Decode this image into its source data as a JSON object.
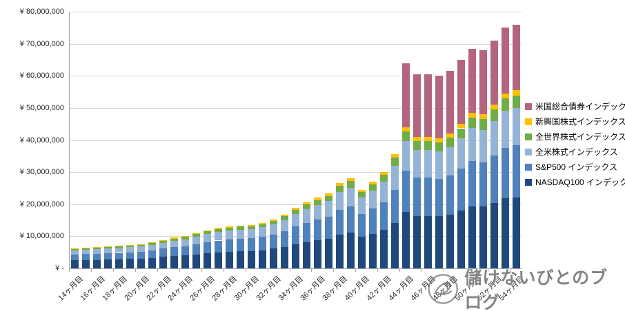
{
  "watermark": {
    "text": "儲けないびとのブログ"
  },
  "chart_data": {
    "type": "bar",
    "stacked": true,
    "title": "",
    "xlabel": "",
    "ylabel": "",
    "ylim": [
      0,
      80000000
    ],
    "grid": true,
    "legend_position": "right",
    "x_label_every": 2,
    "y_ticks": [
      {
        "value": 0,
        "label": "¥ -"
      },
      {
        "value": 10000000,
        "label": "¥ 10,000,000"
      },
      {
        "value": 20000000,
        "label": "¥ 20,000,000"
      },
      {
        "value": 30000000,
        "label": "¥ 30,000,000"
      },
      {
        "value": 40000000,
        "label": "¥ 40,000,000"
      },
      {
        "value": 50000000,
        "label": "¥ 50,000,000"
      },
      {
        "value": 60000000,
        "label": "¥ 60,000,000"
      },
      {
        "value": 70000000,
        "label": "¥ 70,000,000"
      },
      {
        "value": 80000000,
        "label": "¥ 80,000,000"
      }
    ],
    "categories": [
      "14ヶ月目",
      "15ヶ月目",
      "16ヶ月目",
      "17ヶ月目",
      "18ヶ月目",
      "19ヶ月目",
      "20ヶ月目",
      "21ヶ月目",
      "22ヶ月目",
      "23ヶ月目",
      "24ヶ月目",
      "25ヶ月目",
      "26ヶ月目",
      "27ヶ月目",
      "28ヶ月目",
      "29ヶ月目",
      "30ヶ月目",
      "31ヶ月目",
      "32ヶ月目",
      "33ヶ月目",
      "34ヶ月目",
      "35ヶ月目",
      "36ヶ月目",
      "37ヶ月目",
      "38ヶ月目",
      "39ヶ月目",
      "40ヶ月目",
      "41ヶ月目",
      "42ヶ月目",
      "43ヶ月目",
      "44ヶ月目",
      "45ヶ月目",
      "46ヶ月目",
      "47ヶ月目",
      "48ヶ月目",
      "49ヶ月目",
      "50ヶ月目",
      "51ヶ月目",
      "52ヶ月目",
      "53ヶ月目",
      "54ヶ月目"
    ],
    "series": [
      {
        "name": "NASDAQ100 インデックス",
        "color": "#1F497D",
        "values": [
          2520000,
          2600000,
          2640000,
          2760000,
          2800000,
          2920000,
          3040000,
          3280000,
          3560000,
          3840000,
          4040000,
          4400000,
          4760000,
          5040000,
          5240000,
          5360000,
          5440000,
          5680000,
          6120000,
          6720000,
          7560000,
          8200000,
          8800000,
          9320000,
          10600000,
          11200000,
          9800000,
          10800000,
          12000000,
          14200000,
          17600000,
          16400000,
          16400000,
          16200000,
          16800000,
          18000000,
          19400000,
          19200000,
          20400000,
          21800000,
          22200000
        ]
      },
      {
        "name": "S&P500 インデックス",
        "color": "#4F81BD",
        "values": [
          1830000,
          1890000,
          1910000,
          2000000,
          2030000,
          2120000,
          2200000,
          2380000,
          2580000,
          2780000,
          2930000,
          3190000,
          3450000,
          3650000,
          3800000,
          3890000,
          3940000,
          4120000,
          4440000,
          4870000,
          5480000,
          5950000,
          6380000,
          6760000,
          7690000,
          8120000,
          7110000,
          7830000,
          8700000,
          10300000,
          12760000,
          11890000,
          11890000,
          11750000,
          12180000,
          13050000,
          14070000,
          13920000,
          14790000,
          15810000,
          16100000
        ]
      },
      {
        "name": "全米株式インデックス",
        "color": "#95B3D7",
        "values": [
          1320000,
          1370000,
          1390000,
          1450000,
          1470000,
          1530000,
          1600000,
          1720000,
          1870000,
          2020000,
          2120000,
          2310000,
          2500000,
          2650000,
          2750000,
          2810000,
          2860000,
          2980000,
          3210000,
          3530000,
          3970000,
          4310000,
          4620000,
          4890000,
          5570000,
          5880000,
          5150000,
          5670000,
          6300000,
          7460000,
          9240000,
          8610000,
          8610000,
          8510000,
          8820000,
          9450000,
          10190000,
          10080000,
          10710000,
          11450000,
          11660000
        ]
      },
      {
        "name": "全世界株式インデックス",
        "color": "#70AD47",
        "values": [
          440000,
          460000,
          460000,
          480000,
          490000,
          510000,
          530000,
          570000,
          620000,
          670000,
          710000,
          770000,
          830000,
          880000,
          920000,
          940000,
          950000,
          990000,
          1070000,
          1180000,
          1320000,
          1440000,
          1540000,
          1630000,
          1860000,
          1960000,
          1720000,
          1890000,
          2100000,
          2490000,
          3080000,
          2870000,
          2870000,
          2840000,
          2940000,
          3150000,
          3400000,
          3360000,
          3570000,
          3820000,
          3890000
        ]
      },
      {
        "name": "新興国株式インデックス",
        "color": "#FFC000",
        "values": [
          190000,
          200000,
          200000,
          210000,
          210000,
          220000,
          230000,
          250000,
          270000,
          290000,
          300000,
          330000,
          360000,
          380000,
          390000,
          400000,
          410000,
          430000,
          460000,
          500000,
          570000,
          620000,
          660000,
          700000,
          800000,
          840000,
          740000,
          810000,
          900000,
          1070000,
          1320000,
          1230000,
          1230000,
          1220000,
          1260000,
          1350000,
          1460000,
          1440000,
          1530000,
          1640000,
          1670000
        ]
      },
      {
        "name": "米国総合債券インデックス",
        "color": "#B5647E",
        "values": [
          0,
          0,
          0,
          0,
          0,
          0,
          0,
          0,
          0,
          0,
          0,
          0,
          0,
          0,
          0,
          0,
          0,
          0,
          0,
          0,
          0,
          0,
          0,
          0,
          0,
          0,
          0,
          0,
          0,
          0,
          20000000,
          19500000,
          19500000,
          19500000,
          19500000,
          20000000,
          20000000,
          20000000,
          20000000,
          20500000,
          20500000
        ]
      }
    ]
  }
}
